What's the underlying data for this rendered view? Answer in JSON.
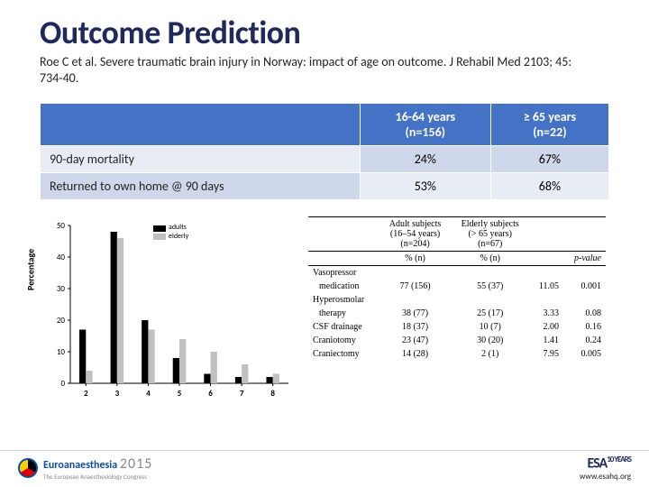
{
  "title": "Outcome Prediction",
  "citation": "Roe C et al. Severe traumatic brain injury in Norway: impact of age on outcome. J Rehabil Med 2103; 45: 734-40.",
  "table": {
    "columns": [
      "",
      "16-64 years\n(n=156)",
      "≥ 65 years\n(n=22)"
    ],
    "rows": [
      {
        "label": "90-day mortality",
        "vals": [
          "24%",
          "67%"
        ]
      },
      {
        "label": "Returned to own home @ 90 days",
        "vals": [
          "53%",
          "68%"
        ]
      }
    ],
    "header_bg": "#4472c4",
    "header_fg": "#ffffff",
    "row_bg_a": "#e8edf5",
    "row_bg_b": "#cfd8ea"
  },
  "chart": {
    "type": "bar",
    "ylabel": "Percentage",
    "x_ticks": [
      "2",
      "3",
      "4",
      "5",
      "6",
      "7",
      "8"
    ],
    "ylim": [
      0,
      50
    ],
    "ytick_step": 10,
    "series": [
      {
        "name": "adults",
        "color": "#000000",
        "values": [
          17,
          48,
          20,
          8,
          3,
          2,
          2
        ]
      },
      {
        "name": "elderly",
        "color": "#c0c0c0",
        "values": [
          4,
          46,
          17,
          14,
          10,
          6,
          3
        ]
      }
    ],
    "bar_width": 0.35,
    "background_color": "#ffffff",
    "axis_color": "#000000",
    "tick_fontsize": 9
  },
  "mini_table": {
    "head": {
      "group1": "Adult subjects\n(16–54 years)\n(n=204)",
      "group2": "Elderly subjects\n(> 65 years)\n(n=67)",
      "pct_label": "% (n)",
      "pval": "p-value"
    },
    "rows": [
      {
        "label": "Vasopressor",
        "sub": "medication",
        "g1": "77 (156)",
        "g2": "55 (37)",
        "stat": "11.05",
        "p": "0.001"
      },
      {
        "label": "Hyperosmolar",
        "sub": "therapy",
        "g1": "38 (77)",
        "g2": "25 (17)",
        "stat": "3.33",
        "p": "0.08"
      },
      {
        "label": "CSF drainage",
        "sub": "",
        "g1": "18 (37)",
        "g2": "10 (7)",
        "stat": "2.00",
        "p": "0.16"
      },
      {
        "label": "Craniotomy",
        "sub": "",
        "g1": "23 (47)",
        "g2": "30 (20)",
        "stat": "1.41",
        "p": "0.24"
      },
      {
        "label": "Craniectomy",
        "sub": "",
        "g1": "14 (28)",
        "g2": "2 (1)",
        "stat": "7.95",
        "p": "0.005"
      }
    ]
  },
  "footer": {
    "brand": "Euroanaesthesia",
    "brand_sub": "The European Anaesthesiology Congress",
    "year": "2015",
    "esa": "ESA",
    "esa_years": "10 YEARS",
    "url": "www.esahq.org"
  }
}
